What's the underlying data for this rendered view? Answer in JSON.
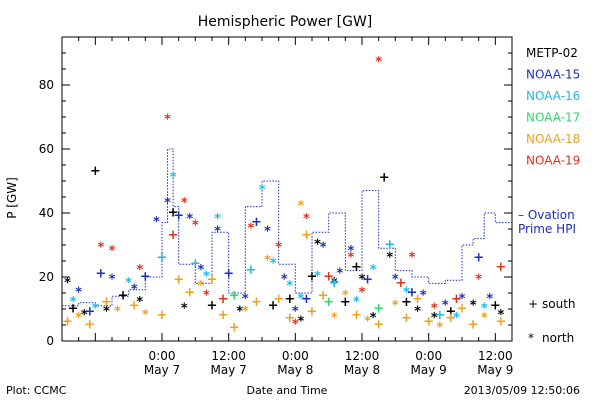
{
  "chart_data": {
    "type": "scatter",
    "title": "Hemispheric Power [GW]",
    "ylabel": "P [GW]",
    "xlabel": "Date and Time",
    "ylim": [
      0,
      95
    ],
    "xlim": [
      "2013-05-06T06:00",
      "2013-05-09T15:00"
    ],
    "y_ticks": [
      0,
      20,
      40,
      60,
      80
    ],
    "x_ticks": [
      {
        "t": "2013-05-07T00:00",
        "time": "0:00",
        "date": "May 7"
      },
      {
        "t": "2013-05-07T12:00",
        "time": "12:00",
        "date": "May 7"
      },
      {
        "t": "2013-05-08T00:00",
        "time": "0:00",
        "date": "May 8"
      },
      {
        "t": "2013-05-08T12:00",
        "time": "12:00",
        "date": "May 8"
      },
      {
        "t": "2013-05-09T00:00",
        "time": "0:00",
        "date": "May 9"
      },
      {
        "t": "2013-05-09T12:00",
        "time": "12:00",
        "date": "May 9"
      }
    ],
    "legend_position": "right",
    "series": [
      {
        "name": "METP-02",
        "color": "#000000",
        "points": [
          [
            "2013-05-06T07:00",
            18,
            "n"
          ],
          [
            "2013-05-06T08:00",
            10,
            "s"
          ],
          [
            "2013-05-06T10:00",
            8,
            "n"
          ],
          [
            "2013-05-06T12:00",
            53,
            "s"
          ],
          [
            "2013-05-06T14:00",
            9,
            "n"
          ],
          [
            "2013-05-06T17:00",
            14,
            "s"
          ],
          [
            "2013-05-06T20:00",
            12,
            "n"
          ],
          [
            "2013-05-07T02:00",
            40,
            "s"
          ],
          [
            "2013-05-07T04:00",
            10,
            "n"
          ],
          [
            "2013-05-07T09:00",
            11,
            "s"
          ],
          [
            "2013-05-07T14:00",
            9,
            "n"
          ],
          [
            "2013-05-07T20:00",
            11,
            "s"
          ],
          [
            "2013-05-07T23:00",
            13,
            "s"
          ],
          [
            "2013-05-08T01:00",
            6,
            "n"
          ],
          [
            "2013-05-08T03:00",
            20,
            "s"
          ],
          [
            "2013-05-08T04:00",
            30,
            "n"
          ],
          [
            "2013-05-08T07:00",
            18,
            "n"
          ],
          [
            "2013-05-08T09:00",
            12,
            "s"
          ],
          [
            "2013-05-08T11:00",
            23,
            "s"
          ],
          [
            "2013-05-08T12:00",
            19,
            "n"
          ],
          [
            "2013-05-08T14:00",
            7,
            "n"
          ],
          [
            "2013-05-08T16:00",
            51,
            "s"
          ],
          [
            "2013-05-08T17:00",
            26,
            "n"
          ],
          [
            "2013-05-08T20:00",
            12,
            "s"
          ],
          [
            "2013-05-08T22:00",
            9,
            "n"
          ],
          [
            "2013-05-09T01:00",
            7,
            "n"
          ],
          [
            "2013-05-09T04:00",
            9,
            "s"
          ],
          [
            "2013-05-09T08:00",
            11,
            "n"
          ],
          [
            "2013-05-09T12:00",
            11,
            "s"
          ],
          [
            "2013-05-09T13:00",
            8,
            "n"
          ]
        ]
      },
      {
        "name": "NOAA-15",
        "color": "#1a2fbf",
        "points": [
          [
            "2013-05-06T09:00",
            15,
            "n"
          ],
          [
            "2013-05-06T11:00",
            9,
            "s"
          ],
          [
            "2013-05-06T13:00",
            21,
            "s"
          ],
          [
            "2013-05-06T15:00",
            19,
            "n"
          ],
          [
            "2013-05-06T19:00",
            16,
            "n"
          ],
          [
            "2013-05-06T21:00",
            20,
            "s"
          ],
          [
            "2013-05-06T23:00",
            37,
            "n"
          ],
          [
            "2013-05-07T01:00",
            43,
            "n"
          ],
          [
            "2013-05-07T03:00",
            39,
            "s"
          ],
          [
            "2013-05-07T05:00",
            38,
            "n"
          ],
          [
            "2013-05-07T07:00",
            22,
            "n"
          ],
          [
            "2013-05-07T10:00",
            34,
            "n"
          ],
          [
            "2013-05-07T12:00",
            21,
            "s"
          ],
          [
            "2013-05-07T15:00",
            13,
            "n"
          ],
          [
            "2013-05-07T17:00",
            37,
            "s"
          ],
          [
            "2013-05-07T19:00",
            34,
            "n"
          ],
          [
            "2013-05-07T22:00",
            19,
            "n"
          ],
          [
            "2013-05-08T00:00",
            9,
            "n"
          ],
          [
            "2013-05-08T02:00",
            13,
            "s"
          ],
          [
            "2013-05-08T05:00",
            29,
            "n"
          ],
          [
            "2013-05-08T08:00",
            21,
            "n"
          ],
          [
            "2013-05-08T10:00",
            28,
            "n"
          ],
          [
            "2013-05-08T13:00",
            19,
            "s"
          ],
          [
            "2013-05-08T18:00",
            19,
            "n"
          ],
          [
            "2013-05-08T21:00",
            15,
            "s"
          ],
          [
            "2013-05-08T23:00",
            14,
            "n"
          ],
          [
            "2013-05-09T03:00",
            11,
            "n"
          ],
          [
            "2013-05-09T06:00",
            13,
            "n"
          ],
          [
            "2013-05-09T09:00",
            26,
            "s"
          ],
          [
            "2013-05-09T11:00",
            13,
            "n"
          ]
        ]
      },
      {
        "name": "NOAA-16",
        "color": "#22b8e6",
        "points": [
          [
            "2013-05-06T08:00",
            12,
            "n"
          ],
          [
            "2013-05-06T12:00",
            10,
            "n"
          ],
          [
            "2013-05-06T18:00",
            18,
            "n"
          ],
          [
            "2013-05-07T00:00",
            26,
            "s"
          ],
          [
            "2013-05-07T02:00",
            51,
            "n"
          ],
          [
            "2013-05-07T06:00",
            24,
            "s"
          ],
          [
            "2013-05-07T08:00",
            20,
            "n"
          ],
          [
            "2013-05-07T10:00",
            38,
            "n"
          ],
          [
            "2013-05-07T16:00",
            22,
            "s"
          ],
          [
            "2013-05-07T18:00",
            47,
            "n"
          ],
          [
            "2013-05-07T20:00",
            24,
            "n"
          ],
          [
            "2013-05-07T23:00",
            17,
            "n"
          ],
          [
            "2013-05-08T01:00",
            13,
            "n"
          ],
          [
            "2013-05-08T04:00",
            20,
            "n"
          ],
          [
            "2013-05-08T07:00",
            18,
            "s"
          ],
          [
            "2013-05-08T11:00",
            12,
            "n"
          ],
          [
            "2013-05-08T14:00",
            22,
            "n"
          ],
          [
            "2013-05-08T17:00",
            30,
            "s"
          ],
          [
            "2013-05-08T20:00",
            15,
            "n"
          ],
          [
            "2013-05-09T02:00",
            8,
            "s"
          ],
          [
            "2013-05-09T05:00",
            7,
            "n"
          ],
          [
            "2013-05-09T10:00",
            10,
            "n"
          ]
        ]
      },
      {
        "name": "NOAA-17",
        "color": "#2fd66b",
        "points": [
          [
            "2013-05-07T13:00",
            14,
            "s"
          ],
          [
            "2013-05-08T06:00",
            12,
            "s"
          ],
          [
            "2013-05-08T15:00",
            10,
            "s"
          ]
        ]
      },
      {
        "name": "NOAA-18",
        "color": "#f0a020",
        "points": [
          [
            "2013-05-06T07:00",
            6,
            "s"
          ],
          [
            "2013-05-06T09:00",
            7,
            "n"
          ],
          [
            "2013-05-06T11:00",
            5,
            "s"
          ],
          [
            "2013-05-06T14:00",
            12,
            "s"
          ],
          [
            "2013-05-06T16:00",
            9,
            "n"
          ],
          [
            "2013-05-06T19:00",
            11,
            "s"
          ],
          [
            "2013-05-06T21:00",
            8,
            "n"
          ],
          [
            "2013-05-07T00:00",
            8,
            "s"
          ],
          [
            "2013-05-07T03:00",
            19,
            "s"
          ],
          [
            "2013-05-07T05:00",
            15,
            "s"
          ],
          [
            "2013-05-07T07:00",
            17,
            "n"
          ],
          [
            "2013-05-07T09:00",
            19,
            "s"
          ],
          [
            "2013-05-07T11:00",
            8,
            "s"
          ],
          [
            "2013-05-07T13:00",
            4,
            "s"
          ],
          [
            "2013-05-07T15:00",
            9,
            "n"
          ],
          [
            "2013-05-07T17:00",
            12,
            "s"
          ],
          [
            "2013-05-07T19:00",
            25,
            "n"
          ],
          [
            "2013-05-07T21:00",
            13,
            "s"
          ],
          [
            "2013-05-07T23:00",
            7,
            "s"
          ],
          [
            "2013-05-08T01:00",
            42,
            "n"
          ],
          [
            "2013-05-08T02:00",
            33,
            "s"
          ],
          [
            "2013-05-08T03:00",
            9,
            "s"
          ],
          [
            "2013-05-08T05:00",
            14,
            "s"
          ],
          [
            "2013-05-08T07:00",
            7,
            "n"
          ],
          [
            "2013-05-08T09:00",
            14,
            "n"
          ],
          [
            "2013-05-08T11:00",
            8,
            "s"
          ],
          [
            "2013-05-08T13:00",
            6,
            "n"
          ],
          [
            "2013-05-08T15:00",
            5,
            "s"
          ],
          [
            "2013-05-08T18:00",
            11,
            "n"
          ],
          [
            "2013-05-08T20:00",
            7,
            "s"
          ],
          [
            "2013-05-08T22:00",
            13,
            "s"
          ],
          [
            "2013-05-09T00:00",
            6,
            "s"
          ],
          [
            "2013-05-09T02:00",
            4,
            "n"
          ],
          [
            "2013-05-09T04:00",
            7,
            "s"
          ],
          [
            "2013-05-09T06:00",
            10,
            "s"
          ],
          [
            "2013-05-09T08:00",
            5,
            "s"
          ],
          [
            "2013-05-09T10:00",
            7,
            "n"
          ],
          [
            "2013-05-09T13:00",
            6,
            "s"
          ]
        ]
      },
      {
        "name": "NOAA-19",
        "color": "#e0301e",
        "points": [
          [
            "2013-05-06T13:00",
            29,
            "n"
          ],
          [
            "2013-05-06T15:00",
            28,
            "n"
          ],
          [
            "2013-05-06T20:00",
            22,
            "n"
          ],
          [
            "2013-05-07T01:00",
            69,
            "n"
          ],
          [
            "2013-05-07T02:00",
            33,
            "s"
          ],
          [
            "2013-05-07T04:00",
            43,
            "n"
          ],
          [
            "2013-05-07T06:00",
            36,
            "n"
          ],
          [
            "2013-05-07T08:00",
            14,
            "n"
          ],
          [
            "2013-05-07T11:00",
            13,
            "s"
          ],
          [
            "2013-05-07T16:00",
            35,
            "n"
          ],
          [
            "2013-05-07T21:00",
            29,
            "n"
          ],
          [
            "2013-05-08T00:00",
            5,
            "n"
          ],
          [
            "2013-05-08T02:00",
            38,
            "n"
          ],
          [
            "2013-05-08T06:00",
            20,
            "s"
          ],
          [
            "2013-05-08T10:00",
            26,
            "n"
          ],
          [
            "2013-05-08T12:00",
            15,
            "n"
          ],
          [
            "2013-05-08T15:00",
            87,
            "n"
          ],
          [
            "2013-05-08T19:00",
            18,
            "s"
          ],
          [
            "2013-05-08T21:00",
            26,
            "n"
          ],
          [
            "2013-05-09T01:00",
            10,
            "n"
          ],
          [
            "2013-05-09T05:00",
            13,
            "s"
          ],
          [
            "2013-05-09T09:00",
            19,
            "n"
          ],
          [
            "2013-05-09T13:00",
            23,
            "s"
          ]
        ]
      }
    ],
    "ovation": {
      "name": "Ovation Prime HPI",
      "label_line1": "– Ovation",
      "label_line2": "Prime HPI",
      "color": "#1a2fbf",
      "steps": [
        [
          "2013-05-06T06:00",
          11
        ],
        [
          "2013-05-06T09:00",
          12
        ],
        [
          "2013-05-06T12:00",
          11
        ],
        [
          "2013-05-06T15:00",
          14
        ],
        [
          "2013-05-06T18:00",
          16
        ],
        [
          "2013-05-06T21:00",
          20
        ],
        [
          "2013-05-07T00:00",
          37
        ],
        [
          "2013-05-07T01:00",
          60
        ],
        [
          "2013-05-07T02:00",
          42
        ],
        [
          "2013-05-07T03:00",
          24
        ],
        [
          "2013-05-07T06:00",
          18
        ],
        [
          "2013-05-07T09:00",
          34
        ],
        [
          "2013-05-07T12:00",
          15
        ],
        [
          "2013-05-07T15:00",
          42
        ],
        [
          "2013-05-07T18:00",
          50
        ],
        [
          "2013-05-07T21:00",
          24
        ],
        [
          "2013-05-08T00:00",
          15
        ],
        [
          "2013-05-08T03:00",
          34
        ],
        [
          "2013-05-08T06:00",
          40
        ],
        [
          "2013-05-08T09:00",
          22
        ],
        [
          "2013-05-08T12:00",
          47
        ],
        [
          "2013-05-08T15:00",
          29
        ],
        [
          "2013-05-08T18:00",
          22
        ],
        [
          "2013-05-08T21:00",
          20
        ],
        [
          "2013-05-09T00:00",
          18
        ],
        [
          "2013-05-09T03:00",
          19
        ],
        [
          "2013-05-09T06:00",
          30
        ],
        [
          "2013-05-09T08:00",
          32
        ],
        [
          "2013-05-09T10:00",
          40
        ],
        [
          "2013-05-09T12:00",
          37
        ],
        [
          "2013-05-09T15:00",
          37
        ]
      ]
    },
    "markers": {
      "south_symbol": "+",
      "south_label": "south",
      "north_symbol": "*",
      "north_label": "north"
    }
  },
  "footer": {
    "left": "Plot: CCMC",
    "center": "Date and Time",
    "right": "2013/05/09 12:50:06"
  }
}
